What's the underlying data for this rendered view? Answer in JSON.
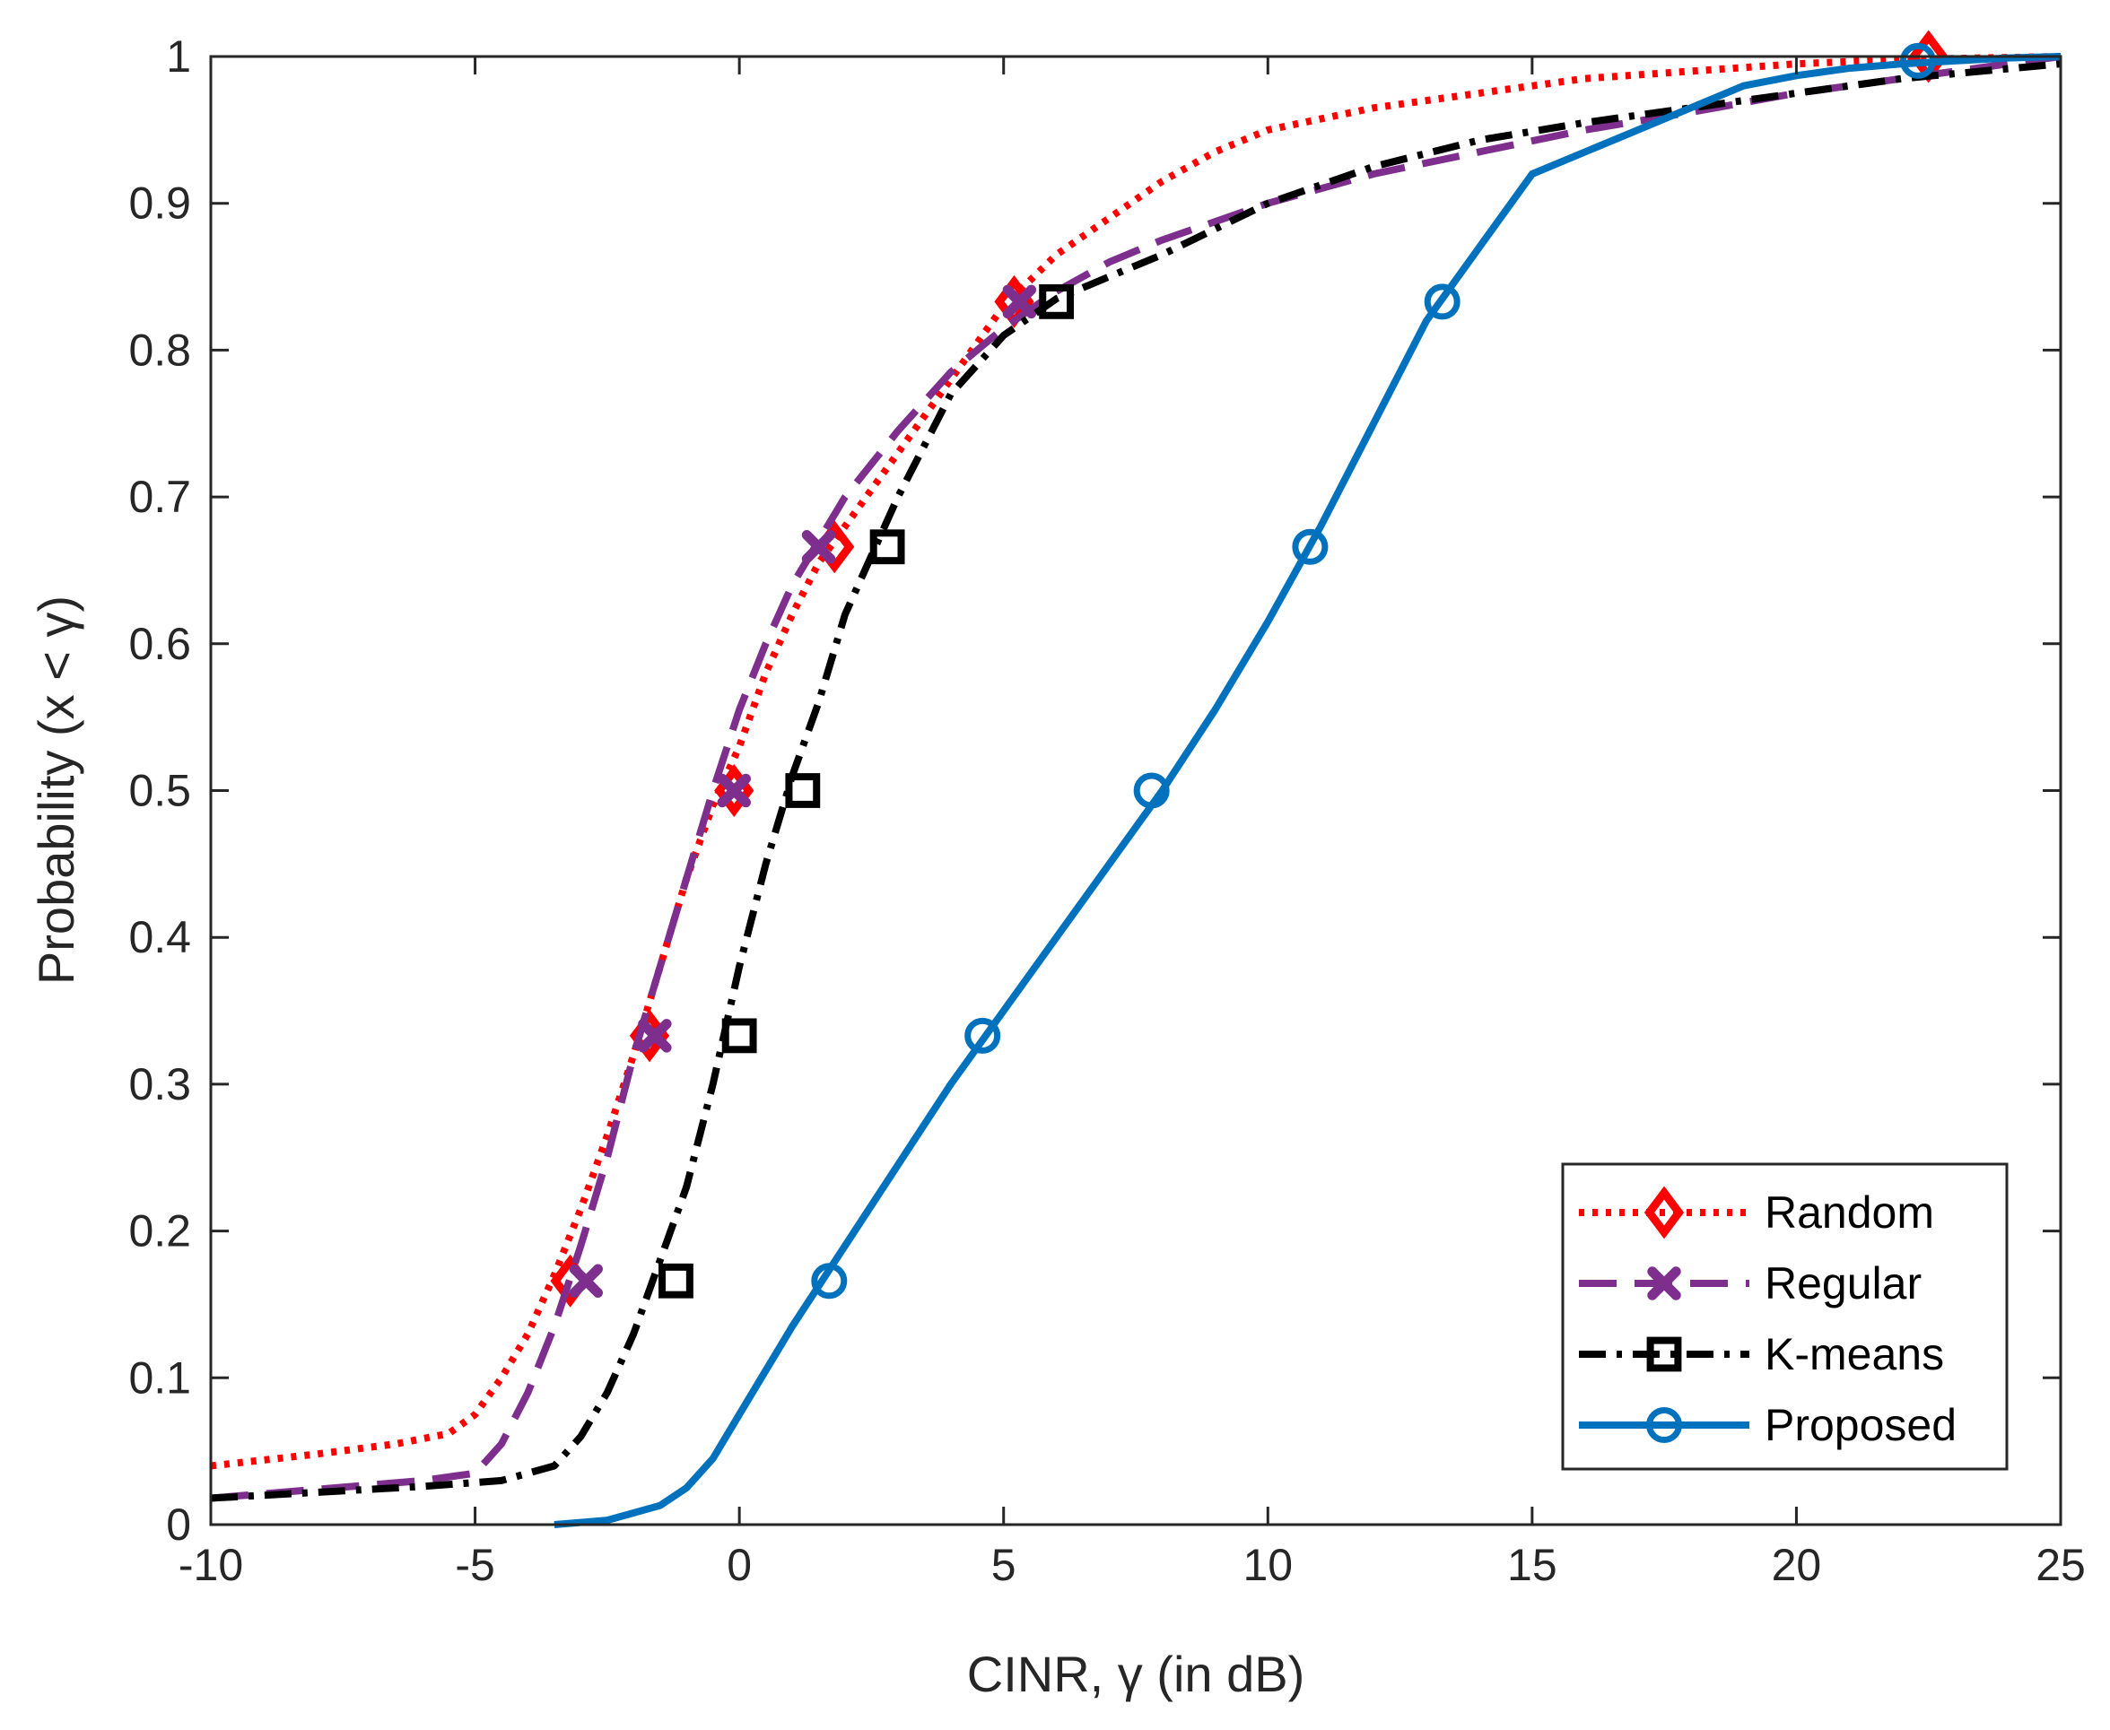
{
  "chart_data": {
    "type": "line",
    "title": "",
    "xlabel": "CINR, γ (in dB)",
    "ylabel": "Probability (x < γ)",
    "xlim": [
      -10,
      25
    ],
    "ylim": [
      0,
      1
    ],
    "xticks": [
      -10,
      -5,
      0,
      5,
      10,
      15,
      20,
      25
    ],
    "xtick_labels": [
      "-10",
      "-5",
      "0",
      "5",
      "10",
      "15",
      "20",
      "25"
    ],
    "yticks": [
      0,
      0.1,
      0.2,
      0.3,
      0.4,
      0.5,
      0.6,
      0.7,
      0.8,
      0.9,
      1
    ],
    "ytick_labels": [
      "0",
      "0.1",
      "0.2",
      "0.3",
      "0.4",
      "0.5",
      "0.6",
      "0.7",
      "0.8",
      "0.9",
      "1"
    ],
    "grid": false,
    "legend_position": "bottom-right",
    "series": [
      {
        "name": "Random",
        "color": "#ff0000",
        "line_style": "dotted",
        "marker": "diamond",
        "x": [
          -10,
          -8,
          -6.5,
          -5.5,
          -5,
          -4.5,
          -4,
          -3.5,
          -3,
          -2.5,
          -2,
          -1.5,
          -1,
          -0.5,
          0,
          0.5,
          1,
          1.5,
          2,
          3,
          4,
          5,
          6,
          7,
          8,
          9,
          10,
          12,
          14,
          16,
          18,
          20,
          22,
          25
        ],
        "y": [
          0.04,
          0.048,
          0.055,
          0.062,
          0.075,
          0.1,
          0.13,
          0.17,
          0.215,
          0.265,
          0.32,
          0.38,
          0.44,
          0.49,
          0.53,
          0.58,
          0.62,
          0.655,
          0.68,
          0.73,
          0.78,
          0.83,
          0.865,
          0.89,
          0.915,
          0.935,
          0.95,
          0.965,
          0.975,
          0.985,
          0.99,
          0.995,
          0.998,
          1.0
        ],
        "marker_x": [
          -3.2,
          -1.7,
          -0.1,
          1.8,
          5.2,
          22.5
        ],
        "marker_y": [
          0.166,
          0.333,
          0.5,
          0.666,
          0.833,
          1.0
        ]
      },
      {
        "name": "Regular",
        "color": "#7e2f8e",
        "line_style": "dashed",
        "marker": "x",
        "x": [
          -10,
          -8,
          -6,
          -5,
          -4.5,
          -4,
          -3.5,
          -3,
          -2.5,
          -2,
          -1.5,
          -1,
          -0.5,
          0,
          0.5,
          1,
          1.5,
          2,
          3,
          4,
          5,
          6,
          7,
          8,
          10,
          12,
          14,
          16,
          18,
          20,
          22,
          25
        ],
        "y": [
          0.018,
          0.024,
          0.03,
          0.035,
          0.055,
          0.09,
          0.135,
          0.19,
          0.25,
          0.32,
          0.38,
          0.44,
          0.5,
          0.555,
          0.6,
          0.64,
          0.67,
          0.7,
          0.745,
          0.785,
          0.815,
          0.84,
          0.86,
          0.875,
          0.9,
          0.92,
          0.935,
          0.95,
          0.962,
          0.975,
          0.985,
          1.0
        ],
        "marker_x": [
          -2.9,
          -1.6,
          -0.1,
          1.5,
          5.3
        ],
        "marker_y": [
          0.166,
          0.333,
          0.5,
          0.666,
          0.833
        ]
      },
      {
        "name": "K-means",
        "color": "#000000",
        "line_style": "dashdot",
        "marker": "square",
        "x": [
          -10,
          -8,
          -6,
          -4.5,
          -3.5,
          -3,
          -2.5,
          -2,
          -1.5,
          -1,
          -0.5,
          0,
          0.5,
          1,
          1.5,
          2,
          2.5,
          3,
          4,
          5,
          6,
          7,
          8,
          10,
          12,
          14,
          16,
          18,
          20,
          22,
          25
        ],
        "y": [
          0.018,
          0.022,
          0.026,
          0.03,
          0.04,
          0.06,
          0.09,
          0.13,
          0.18,
          0.23,
          0.3,
          0.38,
          0.45,
          0.51,
          0.56,
          0.62,
          0.66,
          0.7,
          0.77,
          0.81,
          0.835,
          0.85,
          0.865,
          0.9,
          0.925,
          0.943,
          0.955,
          0.965,
          0.975,
          0.985,
          0.995
        ],
        "marker_x": [
          -1.2,
          0,
          1.2,
          2.8,
          6.0
        ],
        "marker_y": [
          0.166,
          0.333,
          0.5,
          0.666,
          0.833
        ]
      },
      {
        "name": "Proposed",
        "color": "#0072bd",
        "line_style": "solid",
        "marker": "circle",
        "x": [
          -3.5,
          -2.5,
          -1.5,
          -1,
          -0.5,
          0,
          0.5,
          1,
          2,
          3,
          4,
          5,
          6,
          7,
          8,
          9,
          10,
          11,
          12,
          13,
          14,
          15,
          16,
          17,
          18,
          19,
          20,
          21,
          22,
          23,
          24,
          25
        ],
        "y": [
          0.0,
          0.003,
          0.013,
          0.025,
          0.045,
          0.075,
          0.105,
          0.135,
          0.19,
          0.245,
          0.3,
          0.35,
          0.4,
          0.45,
          0.5,
          0.555,
          0.615,
          0.68,
          0.75,
          0.82,
          0.87,
          0.92,
          0.935,
          0.95,
          0.965,
          0.98,
          0.987,
          0.992,
          0.995,
          0.997,
          0.999,
          1.0
        ],
        "marker_x": [
          1.7,
          4.6,
          7.8,
          10.8,
          13.3,
          22.3
        ],
        "marker_y": [
          0.166,
          0.333,
          0.5,
          0.666,
          0.833,
          0.997
        ]
      }
    ]
  }
}
